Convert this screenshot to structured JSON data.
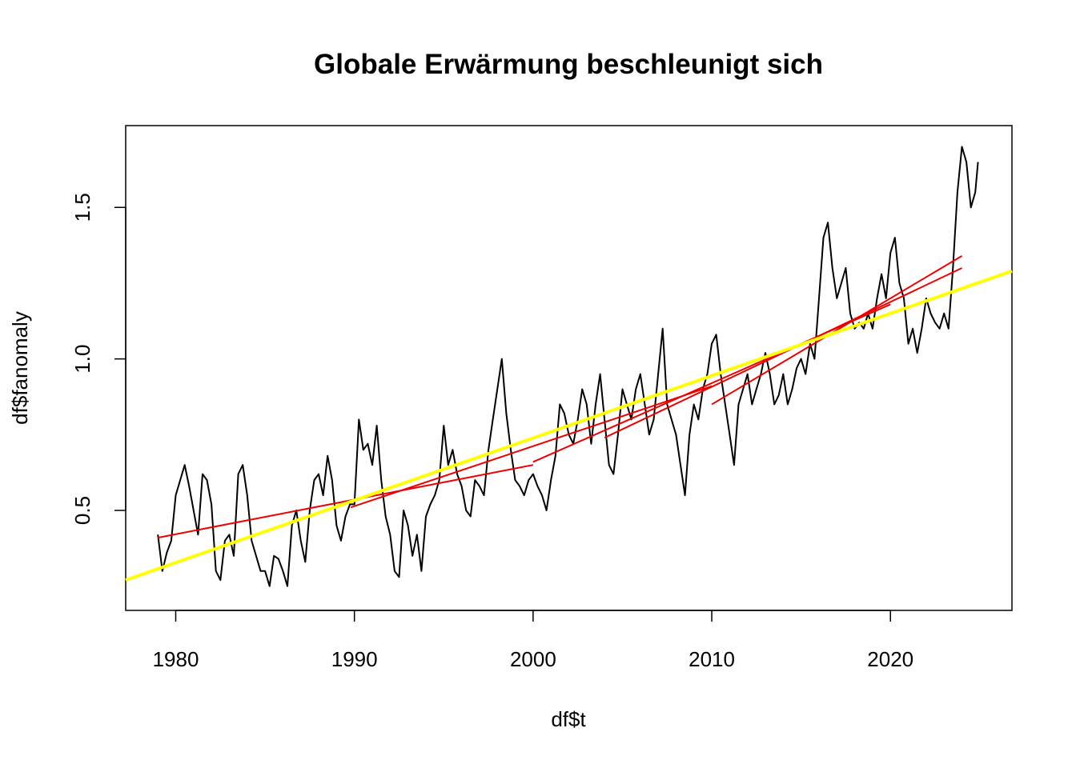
{
  "chart_data": {
    "type": "line",
    "title": "Globale Erwärmung beschleunigt sich",
    "xlabel": "df$t",
    "ylabel": "df$fanomaly",
    "xlim": [
      1977.2,
      2026.8
    ],
    "ylim": [
      0.17,
      1.77
    ],
    "x_ticks": [
      1980,
      1990,
      2000,
      2010,
      2020
    ],
    "y_ticks": [
      0.5,
      1.0,
      1.5
    ],
    "x_tick_labels": [
      "1980",
      "1990",
      "2000",
      "2010",
      "2020"
    ],
    "y_tick_labels": [
      "0.5",
      "1.0",
      "1.5"
    ],
    "grid": false,
    "colors": {
      "series": "#000000",
      "overall_trend": "#ffff00",
      "segment_trends": "#ee0000"
    },
    "series": [
      {
        "x": [
          1979.0,
          1979.25,
          1979.5,
          1979.75,
          1980.0,
          1980.25,
          1980.5,
          1980.75,
          1981.0,
          1981.25,
          1981.5,
          1981.75,
          1982.0,
          1982.25,
          1982.5,
          1982.75,
          1983.0,
          1983.25,
          1983.5,
          1983.75,
          1984.0,
          1984.25,
          1984.5,
          1984.75,
          1985.0,
          1985.25,
          1985.5,
          1985.75,
          1986.0,
          1986.25,
          1986.5,
          1986.75,
          1987.0,
          1987.25,
          1987.5,
          1987.75,
          1988.0,
          1988.25,
          1988.5,
          1988.75,
          1989.0,
          1989.25,
          1989.5,
          1989.75,
          1990.0,
          1990.25,
          1990.5,
          1990.75,
          1991.0,
          1991.25,
          1991.5,
          1991.75,
          1992.0,
          1992.25,
          1992.5,
          1992.75,
          1993.0,
          1993.25,
          1993.5,
          1993.75,
          1994.0,
          1994.25,
          1994.5,
          1994.75,
          1995.0,
          1995.25,
          1995.5,
          1995.75,
          1996.0,
          1996.25,
          1996.5,
          1996.75,
          1997.0,
          1997.25,
          1997.5,
          1997.75,
          1998.0,
          1998.25,
          1998.5,
          1998.75,
          1999.0,
          1999.25,
          1999.5,
          1999.75,
          2000.0,
          2000.25,
          2000.5,
          2000.75,
          2001.0,
          2001.25,
          2001.5,
          2001.75,
          2002.0,
          2002.25,
          2002.5,
          2002.75,
          2003.0,
          2003.25,
          2003.5,
          2003.75,
          2004.0,
          2004.25,
          2004.5,
          2004.75,
          2005.0,
          2005.25,
          2005.5,
          2005.75,
          2006.0,
          2006.25,
          2006.5,
          2006.75,
          2007.0,
          2007.25,
          2007.5,
          2007.75,
          2008.0,
          2008.25,
          2008.5,
          2008.75,
          2009.0,
          2009.25,
          2009.5,
          2009.75,
          2010.0,
          2010.25,
          2010.5,
          2010.75,
          2011.0,
          2011.25,
          2011.5,
          2011.75,
          2012.0,
          2012.25,
          2012.5,
          2012.75,
          2013.0,
          2013.25,
          2013.5,
          2013.75,
          2014.0,
          2014.25,
          2014.5,
          2014.75,
          2015.0,
          2015.25,
          2015.5,
          2015.75,
          2016.0,
          2016.25,
          2016.5,
          2016.75,
          2017.0,
          2017.25,
          2017.5,
          2017.75,
          2018.0,
          2018.25,
          2018.5,
          2018.75,
          2019.0,
          2019.25,
          2019.5,
          2019.75,
          2020.0,
          2020.25,
          2020.5,
          2020.75,
          2021.0,
          2021.25,
          2021.5,
          2021.75,
          2022.0,
          2022.25,
          2022.5,
          2022.75,
          2023.0,
          2023.25,
          2023.5,
          2023.75,
          2024.0,
          2024.25,
          2024.5,
          2024.75,
          2024.9
        ],
        "y": [
          0.42,
          0.3,
          0.36,
          0.4,
          0.55,
          0.6,
          0.65,
          0.58,
          0.5,
          0.42,
          0.62,
          0.6,
          0.52,
          0.3,
          0.27,
          0.4,
          0.42,
          0.35,
          0.62,
          0.65,
          0.55,
          0.4,
          0.35,
          0.3,
          0.3,
          0.25,
          0.35,
          0.34,
          0.3,
          0.25,
          0.45,
          0.5,
          0.4,
          0.33,
          0.5,
          0.6,
          0.62,
          0.55,
          0.68,
          0.6,
          0.45,
          0.4,
          0.48,
          0.52,
          0.52,
          0.8,
          0.7,
          0.72,
          0.65,
          0.78,
          0.6,
          0.48,
          0.42,
          0.3,
          0.28,
          0.5,
          0.45,
          0.35,
          0.42,
          0.3,
          0.48,
          0.52,
          0.55,
          0.6,
          0.78,
          0.65,
          0.7,
          0.62,
          0.58,
          0.5,
          0.48,
          0.6,
          0.58,
          0.55,
          0.7,
          0.8,
          0.9,
          1.0,
          0.82,
          0.7,
          0.6,
          0.58,
          0.55,
          0.6,
          0.62,
          0.58,
          0.55,
          0.5,
          0.6,
          0.68,
          0.85,
          0.82,
          0.75,
          0.72,
          0.8,
          0.9,
          0.85,
          0.72,
          0.85,
          0.95,
          0.8,
          0.65,
          0.62,
          0.75,
          0.9,
          0.85,
          0.8,
          0.9,
          0.95,
          0.85,
          0.75,
          0.8,
          0.95,
          1.1,
          0.85,
          0.8,
          0.75,
          0.65,
          0.55,
          0.75,
          0.85,
          0.8,
          0.9,
          0.95,
          1.05,
          1.08,
          0.95,
          0.85,
          0.75,
          0.65,
          0.85,
          0.9,
          0.95,
          0.85,
          0.9,
          0.95,
          1.02,
          0.95,
          0.85,
          0.88,
          0.95,
          0.85,
          0.9,
          0.97,
          1.0,
          0.95,
          1.05,
          1.0,
          1.2,
          1.4,
          1.45,
          1.3,
          1.2,
          1.25,
          1.3,
          1.15,
          1.1,
          1.12,
          1.1,
          1.15,
          1.1,
          1.2,
          1.28,
          1.2,
          1.35,
          1.4,
          1.25,
          1.2,
          1.05,
          1.1,
          1.02,
          1.1,
          1.2,
          1.15,
          1.12,
          1.1,
          1.15,
          1.1,
          1.3,
          1.55,
          1.7,
          1.65,
          1.5,
          1.55,
          1.65
        ]
      }
    ],
    "trend_lines": [
      {
        "color": "yellow",
        "x": [
          1977.2,
          2026.8
        ],
        "y": [
          0.27,
          1.29
        ]
      },
      {
        "color": "red",
        "x": [
          1979.0,
          2000.0
        ],
        "y": [
          0.41,
          0.65
        ]
      },
      {
        "color": "red",
        "x": [
          1989.8,
          2010.0
        ],
        "y": [
          0.51,
          0.91
        ]
      },
      {
        "color": "red",
        "x": [
          2000.0,
          2020.0
        ],
        "y": [
          0.66,
          1.18
        ]
      },
      {
        "color": "red",
        "x": [
          2004.0,
          2024.0
        ],
        "y": [
          0.74,
          1.3
        ]
      },
      {
        "color": "red",
        "x": [
          2010.0,
          2024.0
        ],
        "y": [
          0.85,
          1.34
        ]
      }
    ]
  }
}
